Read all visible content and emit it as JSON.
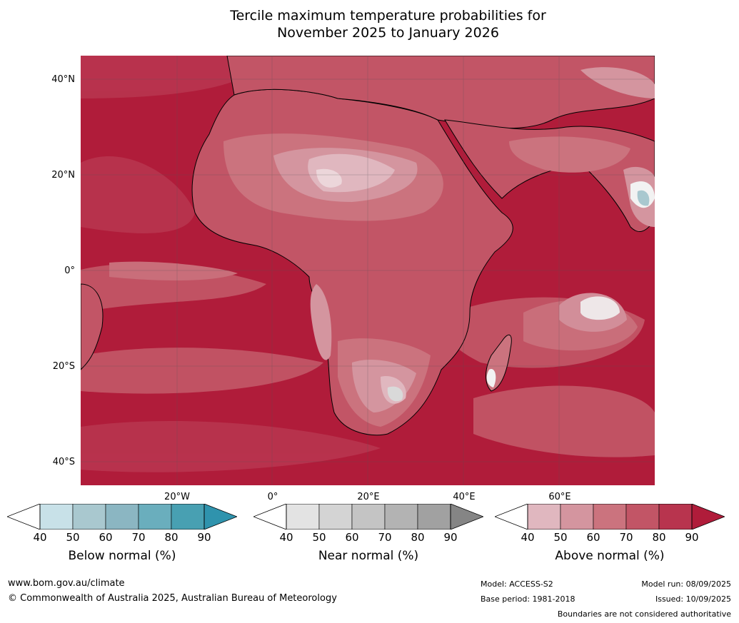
{
  "title_line1": "Tercile maximum temperature probabilities for",
  "title_line2": "November 2025 to January 2026",
  "lat_labels": [
    "40°N",
    "20°N",
    "0°",
    "20°S",
    "40°S"
  ],
  "lon_labels": [
    "20°W",
    "0°",
    "20°E",
    "40°E",
    "60°E"
  ],
  "colorbars": [
    {
      "label": "Below normal (%)",
      "ticks": [
        "40",
        "50",
        "60",
        "70",
        "80",
        "90"
      ],
      "colors": [
        "#c8e1e8",
        "#a9c8cf",
        "#8bb6c2",
        "#6aaebd",
        "#48a0b2"
      ],
      "over": "#2f93ad"
    },
    {
      "label": "Near normal (%)",
      "ticks": [
        "40",
        "50",
        "60",
        "70",
        "80",
        "90"
      ],
      "colors": [
        "#e3e3e3",
        "#d4d4d4",
        "#c4c4c4",
        "#b3b3b3",
        "#a1a1a1"
      ],
      "over": "#858585"
    },
    {
      "label": "Above normal (%)",
      "ticks": [
        "40",
        "50",
        "60",
        "70",
        "80",
        "90"
      ],
      "colors": [
        "#e0b7bf",
        "#d4959f",
        "#cb737e",
        "#c25566",
        "#b8344e"
      ],
      "over": "#b01c3a"
    }
  ],
  "footer": {
    "site": "www.bom.gov.au/climate",
    "copyright": "© Commonwealth of Australia 2025, Australian Bureau of Meteorology",
    "model": "Model: ACCESS-S2",
    "base_period": "Base period: 1981-2018",
    "model_run": "Model run: 08/09/2025",
    "issued": "Issued: 10/09/2025",
    "disclaimer": "Boundaries are not considered authoritative"
  },
  "map_colors": {
    "ocean_base": "#b01c3a",
    "l80": "#b8344e",
    "l70": "#c25566",
    "l60": "#cb737e",
    "l50": "#d4959f",
    "l40": "#e0b7bf",
    "white": "#f2f2f2",
    "grey": "#c9c9c9",
    "blue": "#a9c8cf"
  }
}
